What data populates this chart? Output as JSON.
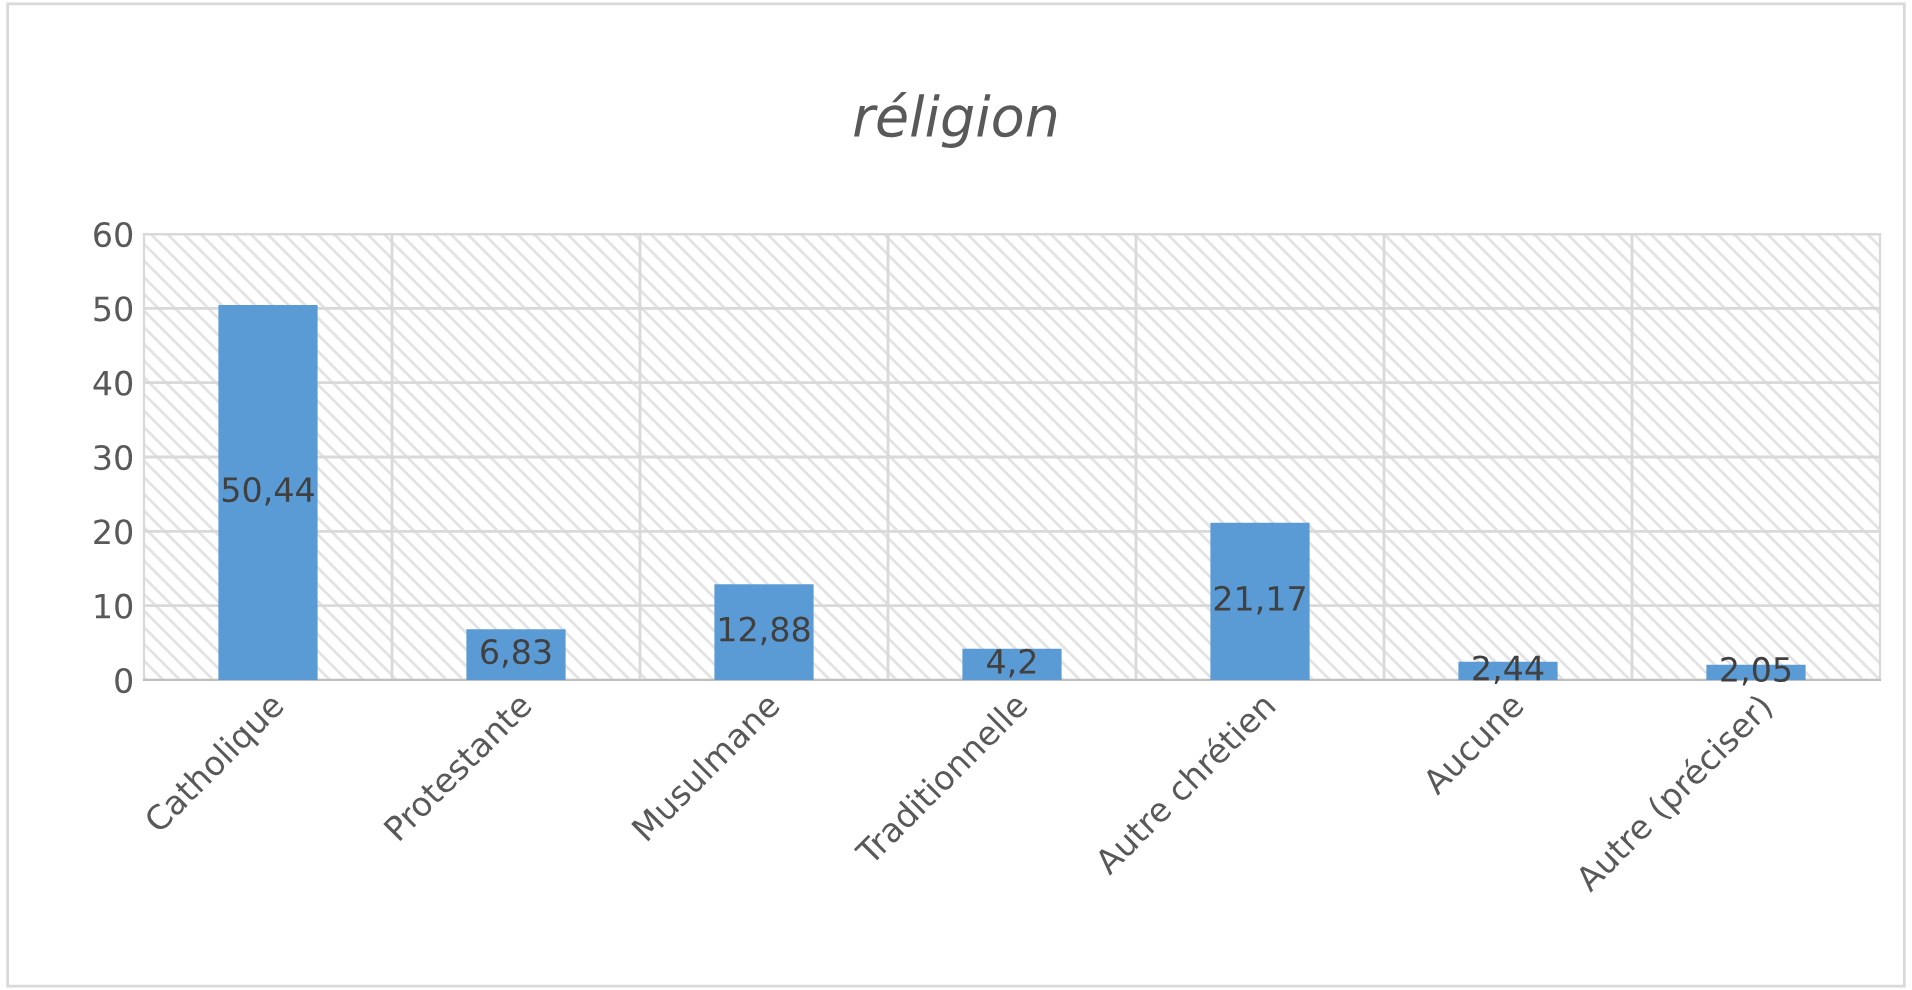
{
  "chart_data": {
    "type": "bar",
    "title": "réligion",
    "categories": [
      "Catholique",
      "Protestante",
      "Musulmane",
      "Traditionnelle",
      "Autre chrétien",
      "Aucune",
      "Autre (préciser)"
    ],
    "values": [
      50.44,
      6.83,
      12.88,
      4.2,
      21.17,
      2.44,
      2.05
    ],
    "value_labels": [
      "50,44",
      "6,83",
      "12,88",
      "4,2",
      "21,17",
      "2,44",
      "2,05"
    ],
    "color": "#5b9bd5",
    "ylim": [
      0,
      60
    ],
    "yticks": [
      0,
      10,
      20,
      30,
      40,
      50,
      60
    ],
    "grid": true
  }
}
